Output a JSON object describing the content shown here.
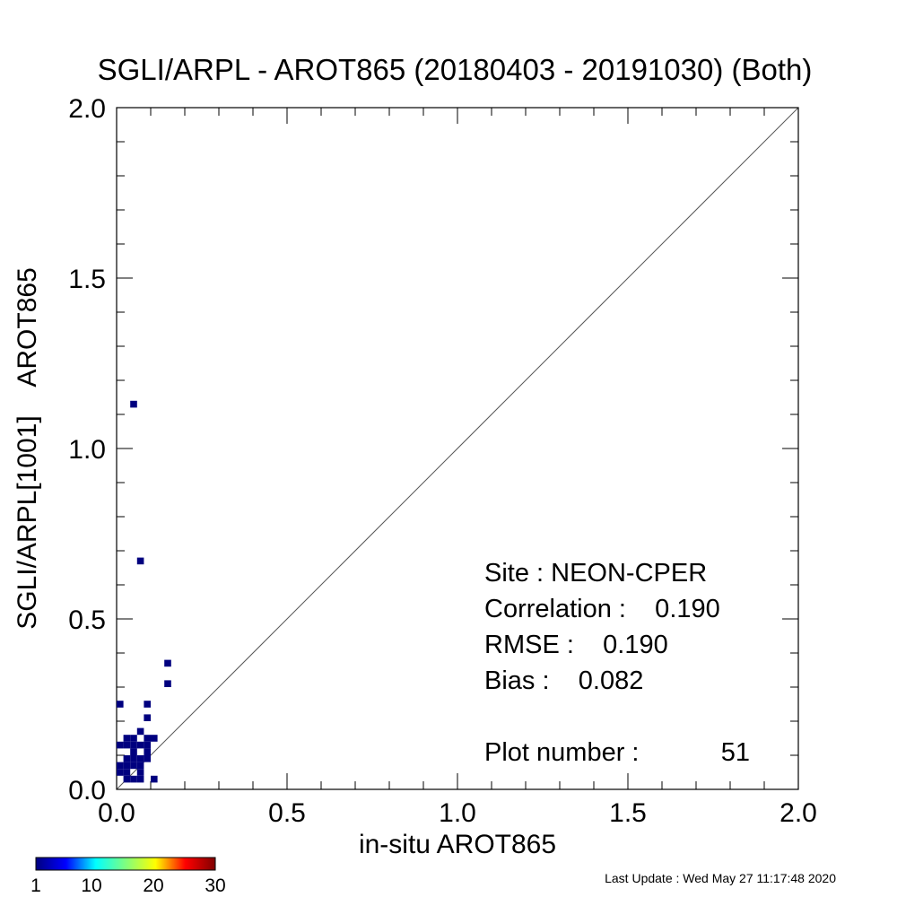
{
  "chart_data": {
    "type": "heatmap",
    "title": "SGLI/ARPL - AROT865 (20180403 - 20191030) (Both)",
    "xlabel": "in-situ AROT865",
    "ylabel": "SGLI/ARPL[1001]    AROT865",
    "xlim": [
      0.0,
      2.0
    ],
    "ylim": [
      0.0,
      2.0
    ],
    "x_tick_labels": [
      "0.0",
      "0.5",
      "1.0",
      "1.5",
      "2.0"
    ],
    "y_tick_labels": [
      "0.0",
      "0.5",
      "1.0",
      "1.5",
      "2.0"
    ],
    "reference_line": "1:1",
    "bin_size": 0.02,
    "bins": [
      {
        "x": 0.04,
        "y": 1.12,
        "count": 1
      },
      {
        "x": 0.06,
        "y": 0.66,
        "count": 1
      },
      {
        "x": 0.14,
        "y": 0.36,
        "count": 1
      },
      {
        "x": 0.14,
        "y": 0.3,
        "count": 1
      },
      {
        "x": 0.0,
        "y": 0.24,
        "count": 1
      },
      {
        "x": 0.08,
        "y": 0.24,
        "count": 1
      },
      {
        "x": 0.08,
        "y": 0.2,
        "count": 1
      },
      {
        "x": 0.06,
        "y": 0.16,
        "count": 1
      },
      {
        "x": 0.02,
        "y": 0.14,
        "count": 1
      },
      {
        "x": 0.04,
        "y": 0.14,
        "count": 1
      },
      {
        "x": 0.08,
        "y": 0.14,
        "count": 1
      },
      {
        "x": 0.1,
        "y": 0.14,
        "count": 1
      },
      {
        "x": 0.0,
        "y": 0.12,
        "count": 1
      },
      {
        "x": 0.02,
        "y": 0.12,
        "count": 1
      },
      {
        "x": 0.04,
        "y": 0.12,
        "count": 1
      },
      {
        "x": 0.06,
        "y": 0.12,
        "count": 1
      },
      {
        "x": 0.08,
        "y": 0.12,
        "count": 1
      },
      {
        "x": 0.04,
        "y": 0.1,
        "count": 1
      },
      {
        "x": 0.08,
        "y": 0.1,
        "count": 1
      },
      {
        "x": 0.02,
        "y": 0.08,
        "count": 1
      },
      {
        "x": 0.04,
        "y": 0.08,
        "count": 1
      },
      {
        "x": 0.06,
        "y": 0.08,
        "count": 1
      },
      {
        "x": 0.08,
        "y": 0.08,
        "count": 1
      },
      {
        "x": 0.0,
        "y": 0.06,
        "count": 1
      },
      {
        "x": 0.02,
        "y": 0.06,
        "count": 1
      },
      {
        "x": 0.04,
        "y": 0.06,
        "count": 1
      },
      {
        "x": 0.06,
        "y": 0.06,
        "count": 1
      },
      {
        "x": 0.0,
        "y": 0.04,
        "count": 1
      },
      {
        "x": 0.02,
        "y": 0.04,
        "count": 1
      },
      {
        "x": 0.06,
        "y": 0.04,
        "count": 1
      },
      {
        "x": 0.02,
        "y": 0.02,
        "count": 1
      },
      {
        "x": 0.04,
        "y": 0.02,
        "count": 1
      },
      {
        "x": 0.06,
        "y": 0.02,
        "count": 1
      },
      {
        "x": 0.1,
        "y": 0.02,
        "count": 1
      }
    ],
    "stats": {
      "site_line": "Site : NEON-CPER",
      "correlation_line": "Correlation :    0.190",
      "rmse_line": "RMSE :    0.190",
      "bias_line": "Bias :    0.082",
      "plot_number_label": "Plot number :",
      "plot_number_value": "51"
    },
    "colorbar": {
      "min": 1,
      "max": 30,
      "tick_labels": [
        "1",
        "10",
        "20",
        "30"
      ],
      "tick_values": [
        1,
        10,
        20,
        30
      ],
      "colormap": "jet",
      "stops": [
        "#00007f",
        "#0000ff",
        "#00ffff",
        "#7fff7f",
        "#ffff00",
        "#ff0000",
        "#7f0000"
      ]
    },
    "marker_color": "#00007f"
  },
  "footer": {
    "last_update": "Last Update : Wed May 27 11:17:48 2020"
  }
}
